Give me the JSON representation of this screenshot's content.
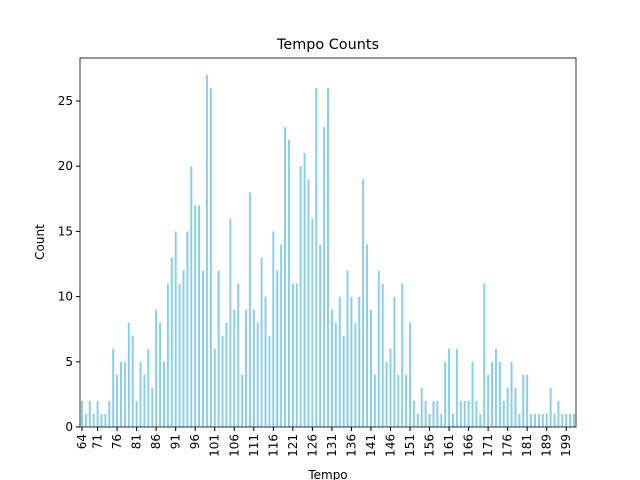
{
  "chart_data": {
    "type": "bar",
    "title": "Tempo Counts",
    "x_label": "Tempo",
    "y_label": "Count",
    "categories": [
      "64",
      null,
      null,
      null,
      "71",
      null,
      null,
      null,
      null,
      "76",
      null,
      null,
      null,
      null,
      "81",
      null,
      null,
      null,
      null,
      "86",
      null,
      null,
      null,
      null,
      "91",
      null,
      null,
      null,
      null,
      "96",
      null,
      null,
      null,
      null,
      "101",
      null,
      null,
      null,
      null,
      "106",
      null,
      null,
      null,
      null,
      "111",
      null,
      null,
      null,
      null,
      "116",
      null,
      null,
      null,
      null,
      "121",
      null,
      null,
      null,
      null,
      "126",
      null,
      null,
      null,
      null,
      "131",
      null,
      null,
      null,
      null,
      "136",
      null,
      null,
      null,
      null,
      "141",
      null,
      null,
      null,
      null,
      "146",
      null,
      null,
      null,
      null,
      "151",
      null,
      null,
      null,
      null,
      "156",
      null,
      null,
      null,
      null,
      "161",
      null,
      null,
      null,
      null,
      "166",
      null,
      null,
      null,
      null,
      "171",
      null,
      null,
      null,
      null,
      "176",
      null,
      null,
      null,
      null,
      "181",
      null,
      null,
      null,
      null,
      "189",
      null,
      null,
      null,
      null,
      "199",
      null,
      null
    ],
    "values": [
      2,
      1,
      2,
      1,
      2,
      1,
      1,
      2,
      6,
      4,
      5,
      5,
      8,
      7,
      2,
      5,
      4,
      6,
      3,
      9,
      8,
      5,
      11,
      13,
      15,
      11,
      12,
      15,
      20,
      17,
      17,
      12,
      27,
      26,
      6,
      12,
      7,
      8,
      16,
      9,
      11,
      4,
      9,
      18,
      9,
      8,
      13,
      10,
      7,
      15,
      12,
      14,
      23,
      22,
      11,
      11,
      20,
      21,
      19,
      16,
      26,
      14,
      23,
      26,
      9,
      8,
      10,
      7,
      12,
      10,
      8,
      10,
      19,
      14,
      9,
      4,
      12,
      11,
      5,
      6,
      10,
      4,
      11,
      4,
      8,
      2,
      1,
      3,
      2,
      1,
      2,
      2,
      1,
      5,
      6,
      1,
      6,
      2,
      2,
      2,
      5,
      2,
      1,
      11,
      4,
      5,
      6,
      5,
      2,
      3,
      5,
      3,
      1,
      4,
      4,
      1,
      1,
      1,
      1,
      1,
      3,
      1,
      2,
      1,
      1,
      1,
      1
    ],
    "color": "#87ceeb",
    "ylim": [
      0,
      28.3
    ],
    "yticks": [
      0,
      5,
      10,
      15,
      20,
      25
    ]
  }
}
